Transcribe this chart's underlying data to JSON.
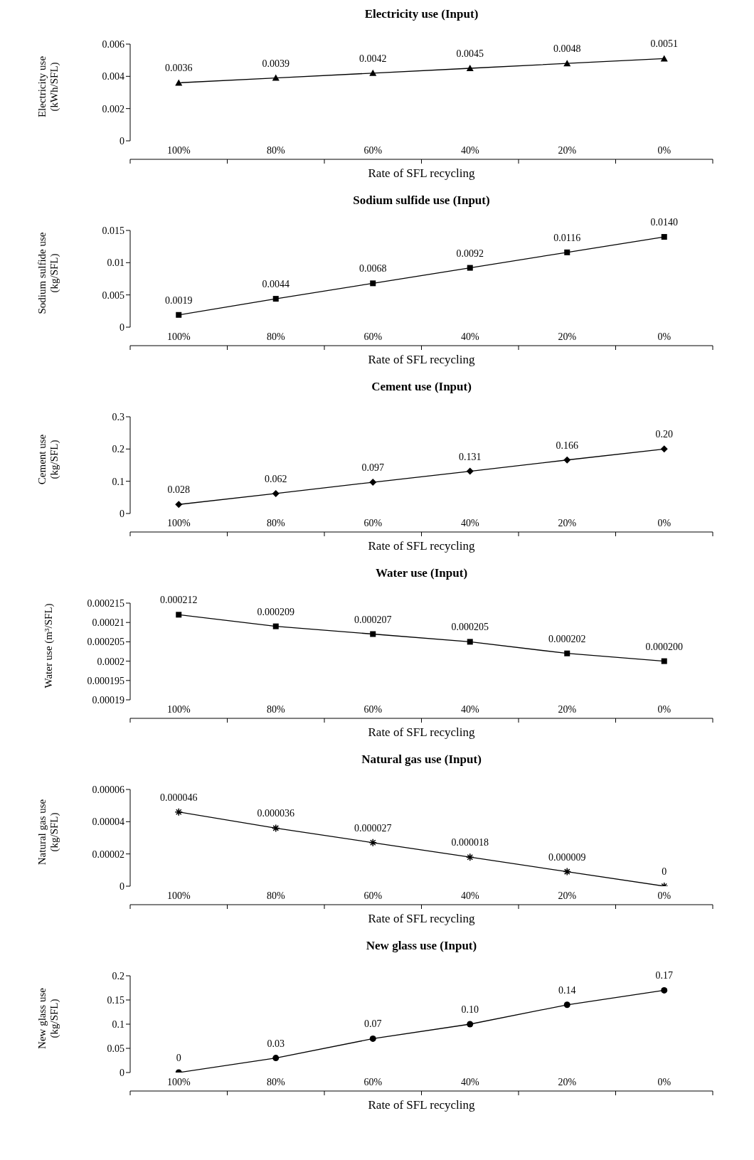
{
  "chart_data": [
    {
      "type": "line",
      "title": "Electricity use (Input)",
      "xlabel": "Rate of SFL recycling",
      "ylabel": "Electricity use (kWh/SFL)",
      "categories": [
        "100%",
        "80%",
        "60%",
        "40%",
        "20%",
        "0%"
      ],
      "ylim": [
        0,
        0.006
      ],
      "yticks": [
        0,
        0.002,
        0.004,
        0.006
      ],
      "marker": "triangle",
      "series": [
        {
          "color": "#000000",
          "values": [
            0.0036,
            0.0039,
            0.0042,
            0.0045,
            0.0048,
            0.0051
          ],
          "value_labels": [
            "0.0036",
            "0.0039",
            "0.0042",
            "0.0045",
            "0.0048",
            "0.0051"
          ]
        }
      ]
    },
    {
      "type": "line",
      "title": "Sodium sulfide use (Input)",
      "xlabel": "Rate of SFL recycling",
      "ylabel": "Sodium sulfide use (kg/SFL)",
      "categories": [
        "100%",
        "80%",
        "60%",
        "40%",
        "20%",
        "0%"
      ],
      "ylim": [
        0,
        0.015
      ],
      "yticks": [
        0,
        0.005,
        0.01,
        0.015
      ],
      "marker": "square",
      "series": [
        {
          "color": "#000000",
          "values": [
            0.0019,
            0.0044,
            0.0068,
            0.0092,
            0.0116,
            0.014
          ],
          "value_labels": [
            "0.0019",
            "0.0044",
            "0.0068",
            "0.0092",
            "0.0116",
            "0.0140"
          ]
        }
      ]
    },
    {
      "type": "line",
      "title": "Cement use (Input)",
      "xlabel": "Rate of SFL recycling",
      "ylabel": "Cement use (kg/SFL)",
      "categories": [
        "100%",
        "80%",
        "60%",
        "40%",
        "20%",
        "0%"
      ],
      "ylim": [
        0,
        0.3
      ],
      "yticks": [
        0,
        0.1,
        0.2,
        0.3
      ],
      "marker": "diamond",
      "series": [
        {
          "color": "#000000",
          "values": [
            0.028,
            0.062,
            0.097,
            0.131,
            0.166,
            0.2
          ],
          "value_labels": [
            "0.028",
            "0.062",
            "0.097",
            "0.131",
            "0.166",
            "0.20"
          ]
        }
      ]
    },
    {
      "type": "line",
      "title": "Water use (Input)",
      "xlabel": "Rate of SFL recycling",
      "ylabel": "Water use (m³/SFL)",
      "categories": [
        "100%",
        "80%",
        "60%",
        "40%",
        "20%",
        "0%"
      ],
      "ylim": [
        0.00019,
        0.000215
      ],
      "yticks": [
        0.00019,
        0.000195,
        0.0002,
        0.000205,
        0.00021,
        0.000215
      ],
      "marker": "square",
      "series": [
        {
          "color": "#000000",
          "values": [
            0.000212,
            0.000209,
            0.000207,
            0.000205,
            0.000202,
            0.0002
          ],
          "value_labels": [
            "0.000212",
            "0.000209",
            "0.000207",
            "0.000205",
            "0.000202",
            "0.000200"
          ]
        }
      ]
    },
    {
      "type": "line",
      "title": "Natural gas use (Input)",
      "xlabel": "Rate of SFL recycling",
      "ylabel": "Natural gas use (kg/SFL)",
      "categories": [
        "100%",
        "80%",
        "60%",
        "40%",
        "20%",
        "0%"
      ],
      "ylim": [
        0,
        6e-05
      ],
      "yticks": [
        0,
        {
          "value": 2e-05,
          "label": "0.00002"
        },
        {
          "value": 4e-05,
          "label": "0.00004"
        },
        {
          "value": 6e-05,
          "label": "0.00006"
        }
      ],
      "marker": "cross",
      "series": [
        {
          "color": "#000000",
          "values": [
            4.6e-05,
            3.6e-05,
            2.7e-05,
            1.8e-05,
            9e-06,
            0
          ],
          "value_labels": [
            "0.000046",
            "0.000036",
            "0.000027",
            "0.000018",
            "0.000009",
            "0"
          ]
        }
      ]
    },
    {
      "type": "line",
      "title": "New glass use (Input)",
      "xlabel": "Rate of SFL recycling",
      "ylabel": "New glass use (kg/SFL)",
      "categories": [
        "100%",
        "80%",
        "60%",
        "40%",
        "20%",
        "0%"
      ],
      "ylim": [
        0,
        0.2
      ],
      "yticks": [
        0,
        0.05,
        0.1,
        0.15,
        0.2
      ],
      "marker": "circle",
      "series": [
        {
          "color": "#000000",
          "values": [
            0,
            0.03,
            0.07,
            0.1,
            0.14,
            0.17
          ],
          "value_labels": [
            "0",
            "0.03",
            "0.07",
            "0.10",
            "0.14",
            "0.17"
          ]
        }
      ]
    }
  ]
}
